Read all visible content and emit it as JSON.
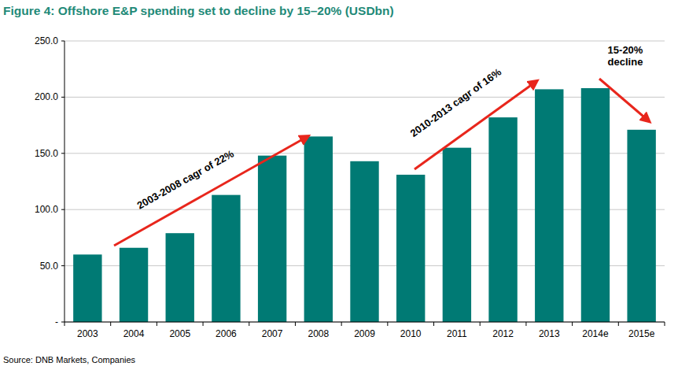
{
  "chart_data": {
    "type": "bar",
    "title": "Figure 4: Offshore E&P spending set to decline by 15–20% (USDbn)",
    "source": "Source: DNB Markets, Companies",
    "categories": [
      "2003",
      "2004",
      "2005",
      "2006",
      "2007",
      "2008",
      "2009",
      "2010",
      "2011",
      "2012",
      "2013",
      "2014e",
      "2015e"
    ],
    "values": [
      60,
      66,
      79,
      113,
      148,
      165,
      143,
      131,
      155,
      182,
      207,
      208,
      171
    ],
    "color": "#007a74",
    "ylim": [
      0,
      250
    ],
    "yticks": [
      {
        "value": 0,
        "label": "-"
      },
      {
        "value": 50,
        "label": "50.0"
      },
      {
        "value": 100,
        "label": "100.0"
      },
      {
        "value": 150,
        "label": "150.0"
      },
      {
        "value": 200,
        "label": "200.0"
      },
      {
        "value": 250,
        "label": "250.0"
      }
    ],
    "grid": true,
    "annotations": [
      "2003-2008 cagr of 22%",
      "2010-2013 cagr of 16%",
      "15-20% decline"
    ]
  }
}
